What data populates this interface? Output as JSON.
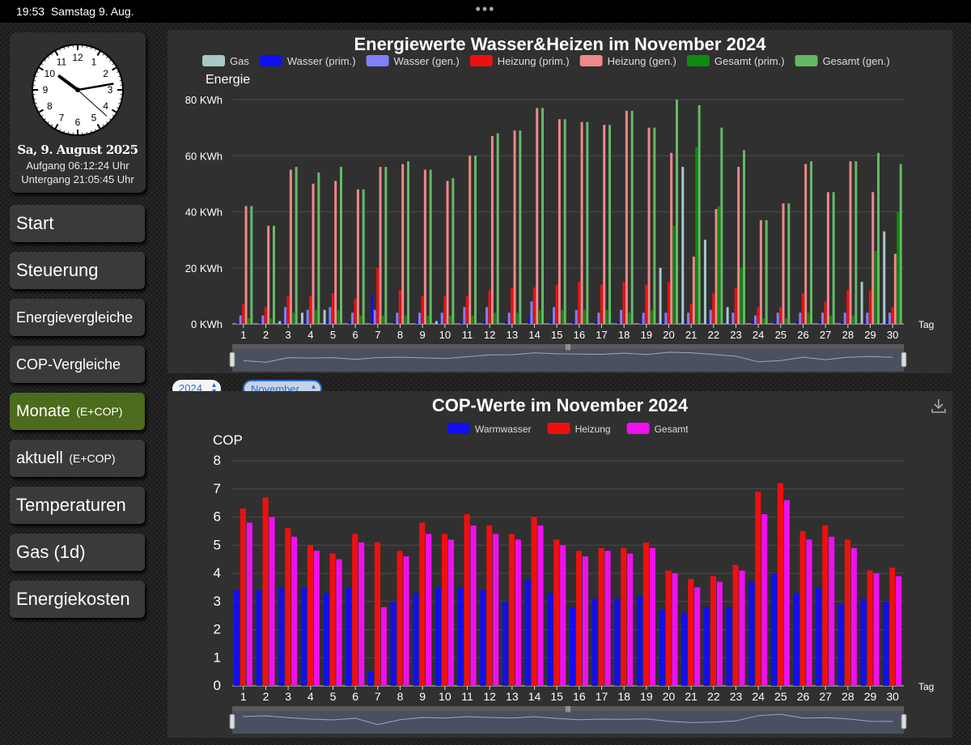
{
  "statusbar": {
    "time": "19:53",
    "date": "Samstag 9. Aug.",
    "dots": "•••"
  },
  "clock": {
    "hour": 10,
    "minute": 13,
    "second": 22,
    "numbers": [
      "12",
      "1",
      "2",
      "3",
      "4",
      "5",
      "6",
      "7",
      "8",
      "9",
      "10",
      "11"
    ],
    "date": "Sa, 9. August 2025",
    "sunrise": "Aufgang 06:12:24 Uhr",
    "sunset": "Untergang 21:05:45 Uhr"
  },
  "nav": {
    "start": "Start",
    "steuerung": "Steuerung",
    "energievergleiche": "Energievergleiche",
    "cop_vergleiche": "COP-Vergleiche",
    "monate": "Monate",
    "monate_suffix": "(E+COP)",
    "aktuell": "aktuell",
    "aktuell_suffix": "(E+COP)",
    "temperaturen": "Temperaturen",
    "gas": "Gas (1d)",
    "energiekosten": "Energiekosten"
  },
  "selectors": {
    "year": "2024",
    "month": "November"
  },
  "colors": {
    "active_nav": "#4d6b1c",
    "panel": "#303030"
  },
  "icons": {
    "download": "download-icon"
  },
  "chart_data": [
    {
      "type": "bar",
      "title": "Energiewerte Wasser&Heizen im November 2024",
      "ylabel": "Energie",
      "xlabel": "Tag",
      "ylim": [
        0,
        80
      ],
      "yticks": [
        "0 KWh",
        "20 KWh",
        "40 KWh",
        "60 KWh",
        "80 KWh"
      ],
      "yticks_values": [
        0,
        20,
        40,
        60,
        80
      ],
      "legend_position": "top",
      "categories": [
        "1",
        "2",
        "3",
        "4",
        "5",
        "6",
        "7",
        "8",
        "9",
        "10",
        "11",
        "12",
        "13",
        "14",
        "15",
        "16",
        "17",
        "18",
        "19",
        "20",
        "21",
        "22",
        "23",
        "24",
        "25",
        "26",
        "27",
        "28",
        "29",
        "30"
      ],
      "series": [
        {
          "name": "Gas",
          "color": "#a8c8c8",
          "values": [
            0,
            0,
            1,
            4,
            5,
            0,
            0,
            0,
            0,
            1,
            0,
            0,
            0,
            0,
            0,
            0,
            0,
            0,
            0,
            20,
            56,
            30,
            6,
            0,
            0,
            0,
            0,
            0,
            15,
            33
          ]
        },
        {
          "name": "Wasser (prim.)",
          "color": "#1010ee",
          "values": [
            1,
            1,
            1,
            1,
            1,
            1,
            10,
            1,
            1,
            1,
            1,
            1,
            1,
            2,
            1,
            1,
            1,
            1,
            1,
            1,
            1,
            1,
            1,
            1,
            1,
            1,
            1,
            1,
            1,
            1
          ]
        },
        {
          "name": "Wasser (gen.)",
          "color": "#8080ff",
          "values": [
            3,
            3,
            6,
            5,
            6,
            4,
            5,
            4,
            4,
            4,
            6,
            6,
            4,
            8,
            6,
            5,
            4,
            5,
            4,
            4,
            4,
            5,
            4,
            3,
            4,
            4,
            4,
            4,
            4,
            4
          ]
        },
        {
          "name": "Heizung (prim.)",
          "color": "#ee1010",
          "values": [
            7,
            6,
            10,
            10,
            11,
            9,
            20,
            12,
            10,
            10,
            10,
            12,
            13,
            13,
            14,
            15,
            14,
            15,
            14,
            15,
            7,
            11,
            13,
            6,
            6,
            11,
            8,
            12,
            12,
            6
          ]
        },
        {
          "name": "Heizung (gen.)",
          "color": "#f08888",
          "values": [
            42,
            35,
            55,
            50,
            51,
            48,
            56,
            57,
            55,
            51,
            60,
            67,
            69,
            77,
            73,
            72,
            71,
            76,
            70,
            61,
            24,
            41,
            56,
            37,
            43,
            57,
            47,
            58,
            47,
            25
          ]
        },
        {
          "name": "Gesamt (prim.)",
          "color": "#0c8c0c",
          "values": [
            2,
            2,
            4,
            5,
            5,
            3,
            3,
            3,
            3,
            3,
            3,
            4,
            4,
            5,
            5,
            5,
            5,
            4,
            5,
            35,
            63,
            42,
            20,
            2,
            2,
            4,
            3,
            3,
            26,
            40
          ]
        },
        {
          "name": "Gesamt (gen.)",
          "color": "#66b866",
          "values": [
            42,
            35,
            56,
            54,
            56,
            48,
            56,
            58,
            55,
            52,
            60,
            68,
            69,
            77,
            73,
            72,
            71,
            76,
            70,
            80,
            78,
            70,
            62,
            37,
            43,
            58,
            47,
            58,
            61,
            57
          ]
        }
      ]
    },
    {
      "type": "bar",
      "title": "COP-Werte im November 2024",
      "ylabel": "COP",
      "xlabel": "Tag",
      "ylim": [
        0,
        8
      ],
      "yticks": [
        "0",
        "1",
        "2",
        "3",
        "4",
        "5",
        "6",
        "7",
        "8"
      ],
      "yticks_values": [
        0,
        1,
        2,
        3,
        4,
        5,
        6,
        7,
        8
      ],
      "legend_position": "top",
      "categories": [
        "1",
        "2",
        "3",
        "4",
        "5",
        "6",
        "7",
        "8",
        "9",
        "10",
        "11",
        "12",
        "13",
        "14",
        "15",
        "16",
        "17",
        "18",
        "19",
        "20",
        "21",
        "22",
        "23",
        "24",
        "25",
        "26",
        "27",
        "28",
        "29",
        "30"
      ],
      "series": [
        {
          "name": "Warmwasser",
          "color": "#1010ee",
          "values": [
            3.4,
            3.4,
            3.5,
            3.5,
            3.3,
            3.5,
            0.5,
            3.0,
            3.3,
            3.5,
            3.5,
            3.4,
            3.0,
            3.8,
            3.3,
            2.8,
            3.1,
            3.1,
            3.2,
            2.7,
            2.6,
            2.8,
            2.8,
            3.7,
            4.0,
            3.3,
            3.5,
            2.9,
            3.1,
            3.0
          ]
        },
        {
          "name": "Heizung",
          "color": "#ee1010",
          "values": [
            6.3,
            6.7,
            5.6,
            5.0,
            4.7,
            5.4,
            5.1,
            4.8,
            5.8,
            5.4,
            6.1,
            5.7,
            5.4,
            6.0,
            5.2,
            4.8,
            4.9,
            4.9,
            5.1,
            4.1,
            3.8,
            3.9,
            4.3,
            6.9,
            7.2,
            5.5,
            5.7,
            5.2,
            4.1,
            4.2
          ]
        },
        {
          "name": "Gesamt",
          "color": "#ee10ee",
          "values": [
            5.8,
            6.0,
            5.3,
            4.8,
            4.5,
            5.1,
            2.8,
            4.6,
            5.4,
            5.2,
            5.7,
            5.4,
            5.2,
            5.7,
            5.0,
            4.6,
            4.8,
            4.7,
            4.9,
            4.0,
            3.5,
            3.7,
            4.1,
            6.1,
            6.6,
            5.2,
            5.3,
            4.9,
            4.0,
            3.9
          ]
        }
      ]
    }
  ]
}
